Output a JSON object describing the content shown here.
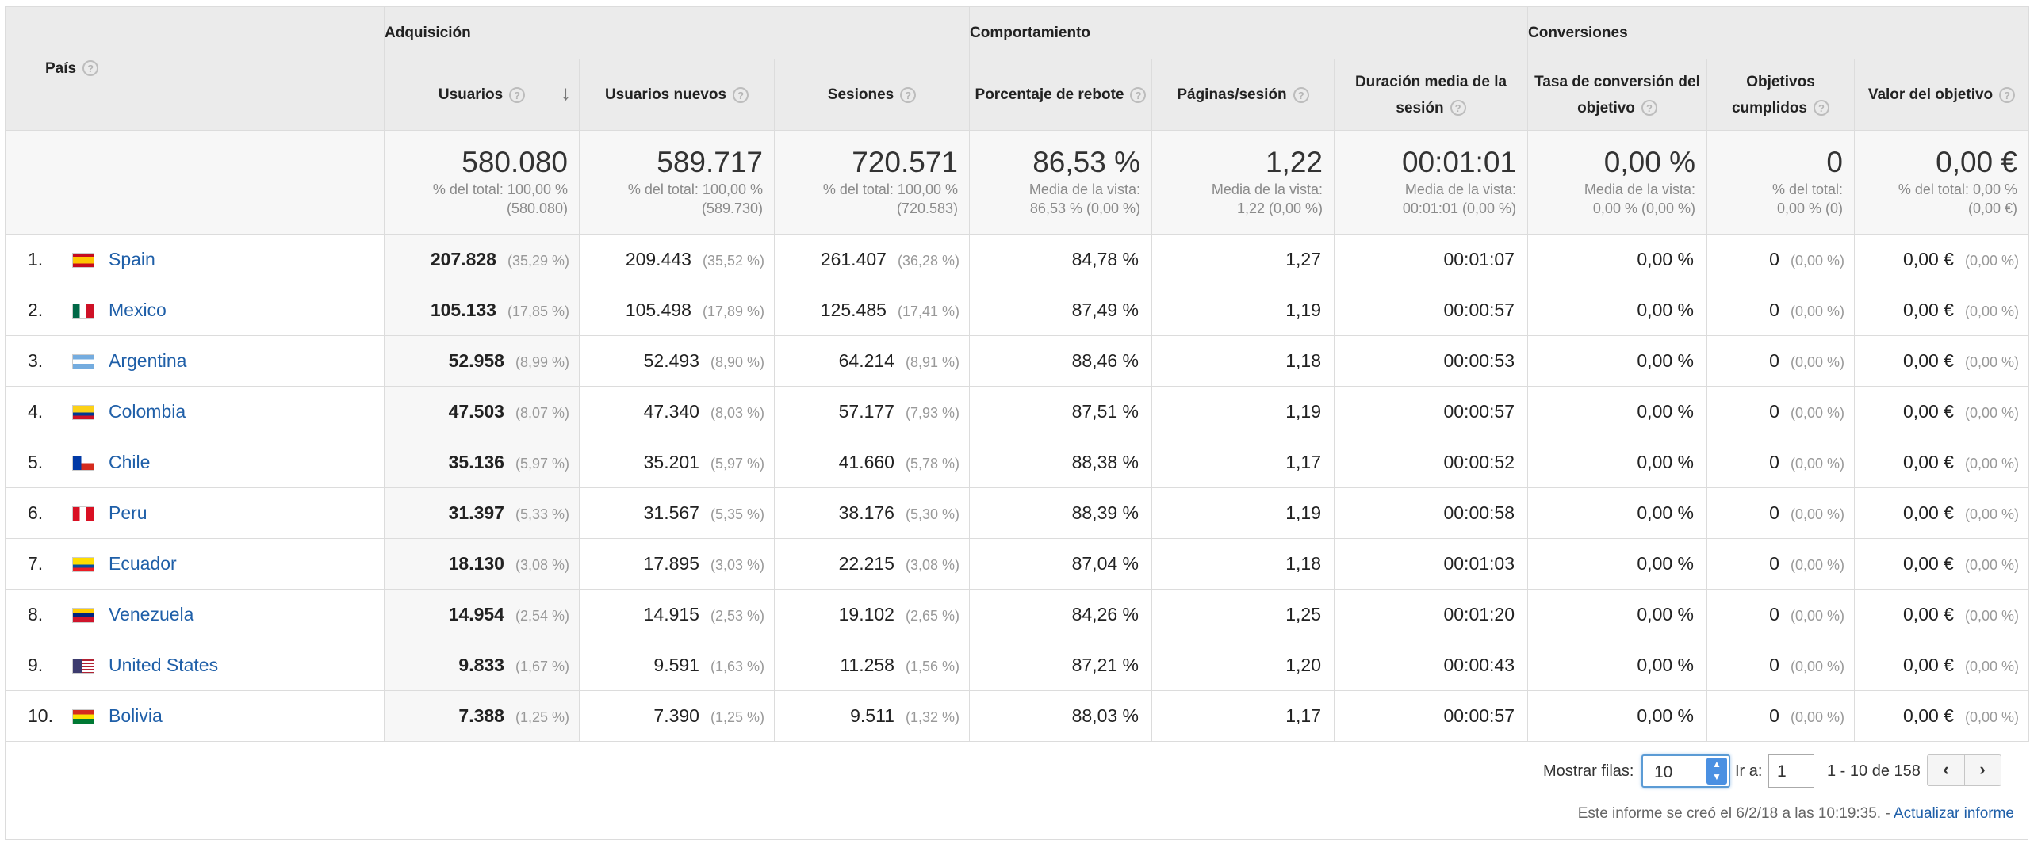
{
  "headers": {
    "pais": "País",
    "groups": [
      "Adquisición",
      "Comportamiento",
      "Conversiones"
    ],
    "columns": [
      "Usuarios",
      "Usuarios nuevos",
      "Sesiones",
      "Porcentaje de rebote",
      "Páginas/sesión",
      "Duración media de la sesión",
      "Tasa de conversión del objetivo",
      "Objetivos cumplidos",
      "Valor del objetivo"
    ],
    "help_glyph": "?",
    "sort_icon": "↓"
  },
  "totals": [
    {
      "big": "580.080",
      "s1": "% del total: 100,00 %",
      "s2": "(580.080)"
    },
    {
      "big": "589.717",
      "s1": "% del total: 100,00 %",
      "s2": "(589.730)"
    },
    {
      "big": "720.571",
      "s1": "% del total: 100,00 %",
      "s2": "(720.583)"
    },
    {
      "big": "86,53 %",
      "s1": "Media de la vista:",
      "s2": "86,53 % (0,00 %)"
    },
    {
      "big": "1,22",
      "s1": "Media de la vista:",
      "s2": "1,22 (0,00 %)"
    },
    {
      "big": "00:01:01",
      "s1": "Media de la vista:",
      "s2": "00:01:01 (0,00 %)"
    },
    {
      "big": "0,00 %",
      "s1": "Media de la vista:",
      "s2": "0,00 % (0,00 %)"
    },
    {
      "big": "0",
      "s1": "% del total:",
      "s2": "0,00 % (0)"
    },
    {
      "big": "0,00 €",
      "s1": "% del total: 0,00 %",
      "s2": "(0,00 €)"
    }
  ],
  "rows": [
    {
      "idx": "1.",
      "country": "Spain",
      "flag": "spain",
      "users": "207.828",
      "users_pct": "(35,29 %)",
      "new": "209.443",
      "new_pct": "(35,52 %)",
      "ses": "261.407",
      "ses_pct": "(36,28 %)",
      "bounce": "84,78 %",
      "pages": "1,27",
      "dur": "00:01:07",
      "conv": "0,00 %",
      "goals": "0",
      "goals_pct": "(0,00 %)",
      "val": "0,00 €",
      "val_pct": "(0,00 %)"
    },
    {
      "idx": "2.",
      "country": "Mexico",
      "flag": "mexico",
      "users": "105.133",
      "users_pct": "(17,85 %)",
      "new": "105.498",
      "new_pct": "(17,89 %)",
      "ses": "125.485",
      "ses_pct": "(17,41 %)",
      "bounce": "87,49 %",
      "pages": "1,19",
      "dur": "00:00:57",
      "conv": "0,00 %",
      "goals": "0",
      "goals_pct": "(0,00 %)",
      "val": "0,00 €",
      "val_pct": "(0,00 %)"
    },
    {
      "idx": "3.",
      "country": "Argentina",
      "flag": "argentina",
      "users": "52.958",
      "users_pct": "(8,99 %)",
      "new": "52.493",
      "new_pct": "(8,90 %)",
      "ses": "64.214",
      "ses_pct": "(8,91 %)",
      "bounce": "88,46 %",
      "pages": "1,18",
      "dur": "00:00:53",
      "conv": "0,00 %",
      "goals": "0",
      "goals_pct": "(0,00 %)",
      "val": "0,00 €",
      "val_pct": "(0,00 %)"
    },
    {
      "idx": "4.",
      "country": "Colombia",
      "flag": "colombia",
      "users": "47.503",
      "users_pct": "(8,07 %)",
      "new": "47.340",
      "new_pct": "(8,03 %)",
      "ses": "57.177",
      "ses_pct": "(7,93 %)",
      "bounce": "87,51 %",
      "pages": "1,19",
      "dur": "00:00:57",
      "conv": "0,00 %",
      "goals": "0",
      "goals_pct": "(0,00 %)",
      "val": "0,00 €",
      "val_pct": "(0,00 %)"
    },
    {
      "idx": "5.",
      "country": "Chile",
      "flag": "chile",
      "users": "35.136",
      "users_pct": "(5,97 %)",
      "new": "35.201",
      "new_pct": "(5,97 %)",
      "ses": "41.660",
      "ses_pct": "(5,78 %)",
      "bounce": "88,38 %",
      "pages": "1,17",
      "dur": "00:00:52",
      "conv": "0,00 %",
      "goals": "0",
      "goals_pct": "(0,00 %)",
      "val": "0,00 €",
      "val_pct": "(0,00 %)"
    },
    {
      "idx": "6.",
      "country": "Peru",
      "flag": "peru",
      "users": "31.397",
      "users_pct": "(5,33 %)",
      "new": "31.567",
      "new_pct": "(5,35 %)",
      "ses": "38.176",
      "ses_pct": "(5,30 %)",
      "bounce": "88,39 %",
      "pages": "1,19",
      "dur": "00:00:58",
      "conv": "0,00 %",
      "goals": "0",
      "goals_pct": "(0,00 %)",
      "val": "0,00 €",
      "val_pct": "(0,00 %)"
    },
    {
      "idx": "7.",
      "country": "Ecuador",
      "flag": "ecuador",
      "users": "18.130",
      "users_pct": "(3,08 %)",
      "new": "17.895",
      "new_pct": "(3,03 %)",
      "ses": "22.215",
      "ses_pct": "(3,08 %)",
      "bounce": "87,04 %",
      "pages": "1,18",
      "dur": "00:01:03",
      "conv": "0,00 %",
      "goals": "0",
      "goals_pct": "(0,00 %)",
      "val": "0,00 €",
      "val_pct": "(0,00 %)"
    },
    {
      "idx": "8.",
      "country": "Venezuela",
      "flag": "venezuela",
      "users": "14.954",
      "users_pct": "(2,54 %)",
      "new": "14.915",
      "new_pct": "(2,53 %)",
      "ses": "19.102",
      "ses_pct": "(2,65 %)",
      "bounce": "84,26 %",
      "pages": "1,25",
      "dur": "00:01:20",
      "conv": "0,00 %",
      "goals": "0",
      "goals_pct": "(0,00 %)",
      "val": "0,00 €",
      "val_pct": "(0,00 %)"
    },
    {
      "idx": "9.",
      "country": "United States",
      "flag": "usa",
      "users": "9.833",
      "users_pct": "(1,67 %)",
      "new": "9.591",
      "new_pct": "(1,63 %)",
      "ses": "11.258",
      "ses_pct": "(1,56 %)",
      "bounce": "87,21 %",
      "pages": "1,20",
      "dur": "00:00:43",
      "conv": "0,00 %",
      "goals": "0",
      "goals_pct": "(0,00 %)",
      "val": "0,00 €",
      "val_pct": "(0,00 %)"
    },
    {
      "idx": "10.",
      "country": "Bolivia",
      "flag": "bolivia",
      "users": "7.388",
      "users_pct": "(1,25 %)",
      "new": "7.390",
      "new_pct": "(1,25 %)",
      "ses": "9.511",
      "ses_pct": "(1,32 %)",
      "bounce": "88,03 %",
      "pages": "1,17",
      "dur": "00:00:57",
      "conv": "0,00 %",
      "goals": "0",
      "goals_pct": "(0,00 %)",
      "val": "0,00 €",
      "val_pct": "(0,00 %)"
    }
  ],
  "footer": {
    "rows_label": "Mostrar filas:",
    "rows_value": "10",
    "goto_label": "Ir a:",
    "goto_value": "1",
    "range": "1 - 10 de 158",
    "prev_icon": "‹",
    "next_icon": "›",
    "note": "Este informe se creó el 6/2/18 a las 10:19:35. -",
    "refresh_link": "Actualizar informe"
  },
  "colors": {
    "header_bg": "#ebebeb",
    "totals_bg": "#f7f7f7",
    "link": "#1f5fa8",
    "border": "#dcdcdc"
  }
}
